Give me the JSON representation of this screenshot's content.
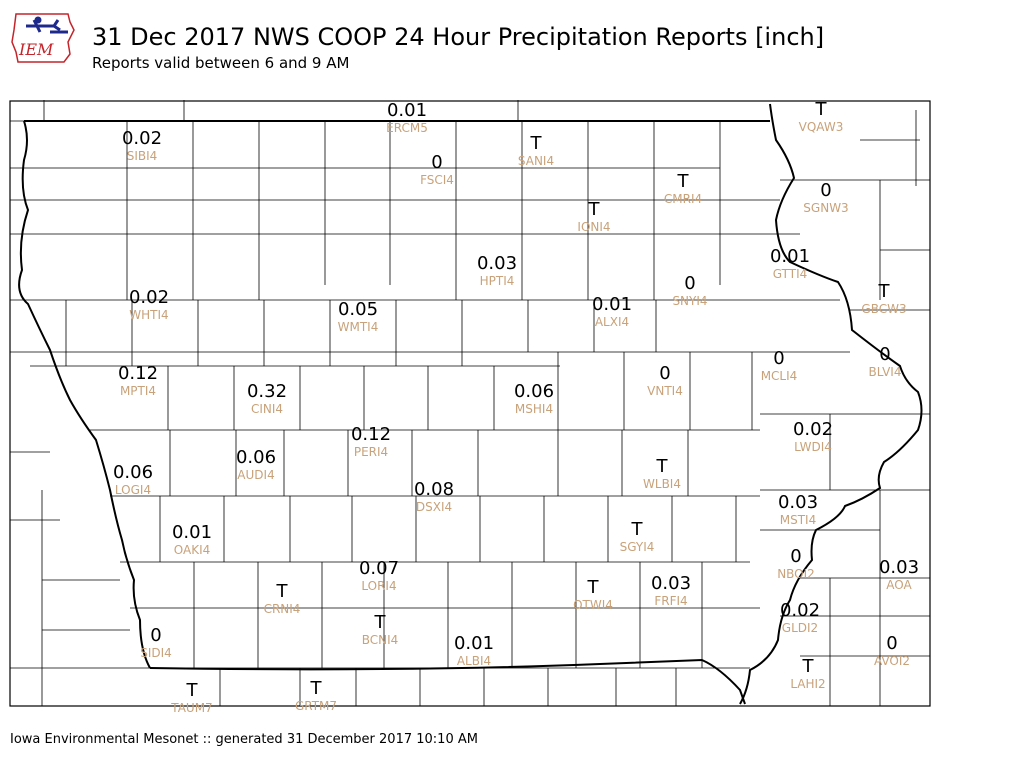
{
  "header": {
    "title": "31 Dec 2017 NWS COOP 24 Hour Precipitation Reports [inch]",
    "subtitle": "Reports valid between 6 and 9 AM",
    "logo_text": "IEM"
  },
  "footer": {
    "text": "Iowa Environmental Mesonet :: generated 31 December 2017 10:10 AM"
  },
  "colors": {
    "value": "#000000",
    "station_label": "#c8a27a",
    "county_line": "#000000",
    "logo_red": "#c4252b",
    "logo_blue": "#1d2a8c"
  },
  "stations": [
    {
      "id": "ERCM5",
      "value": "0.01"
    },
    {
      "id": "VQAW3",
      "value": "T"
    },
    {
      "id": "SIBI4",
      "value": "0.02"
    },
    {
      "id": "SANI4",
      "value": "T"
    },
    {
      "id": "FSCI4",
      "value": "0"
    },
    {
      "id": "CMRI4",
      "value": "T"
    },
    {
      "id": "SGNW3",
      "value": "0"
    },
    {
      "id": "IONI4",
      "value": "T"
    },
    {
      "id": "HPTI4",
      "value": "0.03"
    },
    {
      "id": "GTTI4",
      "value": "0.01"
    },
    {
      "id": "SNYI4",
      "value": "0"
    },
    {
      "id": "GBCW3",
      "value": "T"
    },
    {
      "id": "WHTI4",
      "value": "0.02"
    },
    {
      "id": "WMTI4",
      "value": "0.05"
    },
    {
      "id": "ALXI4",
      "value": "0.01"
    },
    {
      "id": "MCLI4",
      "value": "0"
    },
    {
      "id": "BLVI4",
      "value": "0"
    },
    {
      "id": "MPTI4",
      "value": "0.12"
    },
    {
      "id": "CINI4",
      "value": "0.32"
    },
    {
      "id": "MSHI4",
      "value": "0.06"
    },
    {
      "id": "VNTI4",
      "value": "0"
    },
    {
      "id": "LWDI4",
      "value": "0.02"
    },
    {
      "id": "PERI4",
      "value": "0.12"
    },
    {
      "id": "AUDI4",
      "value": "0.06"
    },
    {
      "id": "LOGI4",
      "value": "0.06"
    },
    {
      "id": "WLBI4",
      "value": "T"
    },
    {
      "id": "DSXI4",
      "value": "0.08"
    },
    {
      "id": "MSTI4",
      "value": "0.03"
    },
    {
      "id": "OAKI4",
      "value": "0.01"
    },
    {
      "id": "SGYI4",
      "value": "T"
    },
    {
      "id": "NBOI2",
      "value": "0"
    },
    {
      "id": "AOA",
      "value": "0.03"
    },
    {
      "id": "LORI4",
      "value": "0.07"
    },
    {
      "id": "CRNI4",
      "value": "T"
    },
    {
      "id": "OTWI4",
      "value": "T"
    },
    {
      "id": "FRFI4",
      "value": "0.03"
    },
    {
      "id": "BCNI4",
      "value": "T"
    },
    {
      "id": "GLDI2",
      "value": "0.02"
    },
    {
      "id": "SIDI4",
      "value": "0"
    },
    {
      "id": "ALBI4",
      "value": "0.01"
    },
    {
      "id": "AVOI2",
      "value": "0"
    },
    {
      "id": "LAHI2",
      "value": "T"
    },
    {
      "id": "TAUM7",
      "value": "T"
    },
    {
      "id": "GRTM7",
      "value": "T"
    }
  ]
}
